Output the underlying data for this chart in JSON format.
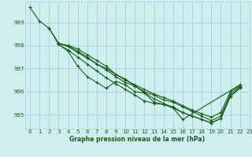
{
  "title": "Graphe pression niveau de la mer (hPa)",
  "bg_color": "#ceeef0",
  "grid_color": "#aad4d8",
  "line_color": "#1a5c1a",
  "xlim": [
    -0.5,
    23
  ],
  "ylim": [
    994.4,
    999.9
  ],
  "yticks": [
    995,
    996,
    997,
    998,
    999
  ],
  "xticks": [
    0,
    1,
    2,
    3,
    4,
    5,
    6,
    7,
    8,
    9,
    10,
    11,
    12,
    13,
    14,
    15,
    16,
    17,
    18,
    19,
    20,
    21,
    22,
    23
  ],
  "series": [
    {
      "x": [
        0,
        1,
        2,
        3,
        4,
        5,
        6,
        7,
        8,
        9,
        10,
        11,
        12,
        13,
        14,
        15,
        16,
        17,
        18,
        19,
        20,
        21,
        22
      ],
      "y": [
        999.65,
        999.05,
        998.75,
        998.1,
        998.0,
        997.75,
        997.5,
        997.2,
        996.95,
        996.65,
        996.4,
        996.25,
        996.0,
        995.85,
        995.65,
        995.55,
        995.35,
        995.15,
        994.95,
        994.75,
        994.95,
        995.9,
        996.25
      ]
    },
    {
      "x": [
        3,
        4,
        5,
        6,
        7,
        8,
        9,
        10,
        11,
        12,
        13,
        14,
        15,
        16,
        17,
        18,
        19,
        20,
        21,
        22
      ],
      "y": [
        998.1,
        997.95,
        997.7,
        997.45,
        997.2,
        997.0,
        996.75,
        996.5,
        996.3,
        996.1,
        995.9,
        995.75,
        995.6,
        995.4,
        995.2,
        995.05,
        994.9,
        995.1,
        996.0,
        996.3
      ]
    },
    {
      "x": [
        3,
        4,
        5,
        6,
        7,
        8,
        9,
        10,
        11,
        12,
        13,
        14,
        15,
        16,
        17,
        18,
        19,
        20,
        21,
        22
      ],
      "y": [
        998.05,
        997.8,
        997.5,
        997.2,
        996.9,
        996.6,
        996.35,
        996.1,
        995.85,
        995.6,
        995.5,
        995.45,
        995.35,
        995.1,
        994.95,
        994.8,
        994.65,
        994.85,
        995.8,
        996.2
      ]
    },
    {
      "x": [
        2,
        3,
        4,
        5,
        6,
        7,
        8,
        9,
        10,
        11,
        12,
        13,
        14,
        15,
        16,
        22
      ],
      "y": [
        998.75,
        998.05,
        997.75,
        997.1,
        996.65,
        996.4,
        996.15,
        996.45,
        996.3,
        996.0,
        995.95,
        995.55,
        995.45,
        995.3,
        994.8,
        996.3
      ]
    },
    {
      "x": [
        4,
        5,
        6,
        7,
        8,
        9,
        10,
        11,
        12,
        13,
        14,
        15,
        16,
        17,
        18,
        19,
        20,
        21,
        22
      ],
      "y": [
        998.0,
        997.85,
        997.6,
        997.35,
        997.1,
        996.75,
        996.55,
        996.25,
        995.95,
        995.7,
        995.5,
        995.3,
        995.1,
        994.95,
        994.8,
        994.65,
        994.85,
        995.8,
        996.15
      ]
    }
  ]
}
